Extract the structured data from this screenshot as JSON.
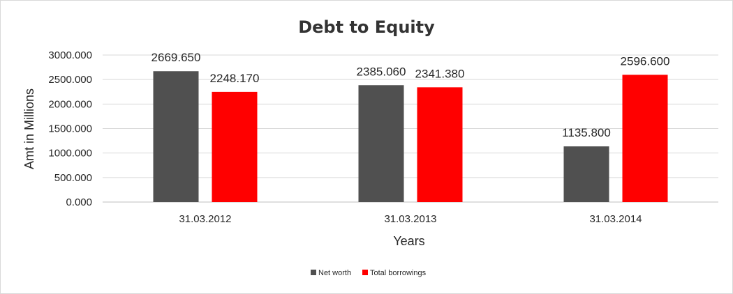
{
  "chart_data": {
    "type": "bar",
    "title": "Debt to Equity",
    "xlabel": "Years",
    "ylabel": "Amt in Millions",
    "categories": [
      "31.03.2012",
      "31.03.2013",
      "31.03.2014"
    ],
    "series": [
      {
        "name": "Net worth",
        "values": [
          2669.65,
          2385.06,
          1135.8
        ],
        "color": "#505050"
      },
      {
        "name": "Total borrowings",
        "values": [
          2248.17,
          2341.38,
          2596.6
        ],
        "color": "#ff0000"
      }
    ],
    "data_labels": [
      [
        "2669.650",
        "2385.060",
        "1135.800"
      ],
      [
        "2248.170",
        "2341.380",
        "2596.600"
      ]
    ],
    "ylim": [
      0,
      3000
    ],
    "yticks": [
      "0.000",
      "500.000",
      "1000.000",
      "1500.000",
      "2000.000",
      "2500.000",
      "3000.000"
    ],
    "grid": true,
    "legend_position": "bottom"
  }
}
